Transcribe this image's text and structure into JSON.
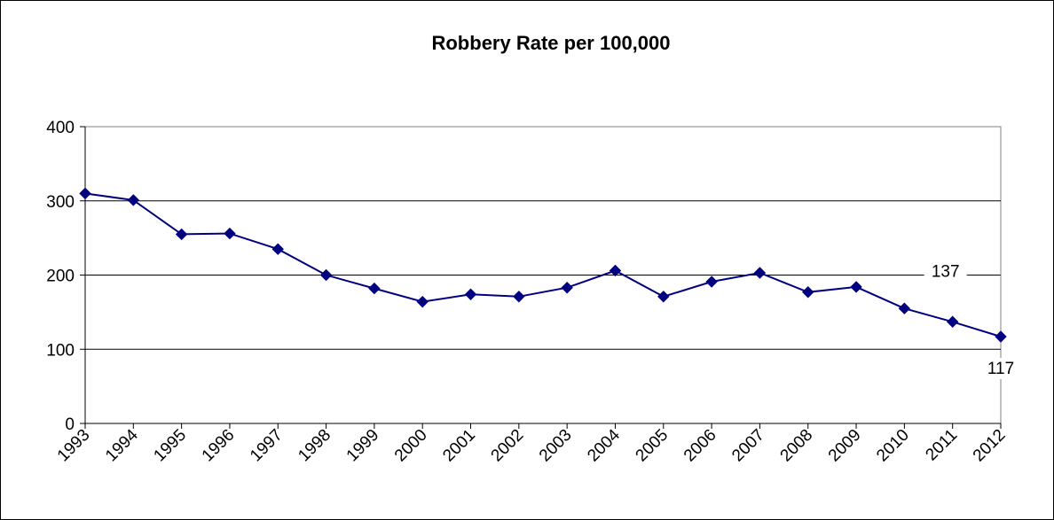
{
  "chart_data": {
    "type": "line",
    "title": "Robbery Rate per 100,000",
    "xlabel": "",
    "ylabel": "",
    "categories": [
      "1993",
      "1994",
      "1995",
      "1996",
      "1997",
      "1998",
      "1999",
      "2000",
      "2001",
      "2002",
      "2003",
      "2004",
      "2005",
      "2006",
      "2007",
      "2008",
      "2009",
      "2010",
      "2011",
      "2012"
    ],
    "series": [
      {
        "values": [
          310,
          301,
          255,
          256,
          235,
          200,
          182,
          164,
          174,
          171,
          183,
          206,
          171,
          191,
          203,
          177,
          184,
          155,
          137,
          117
        ],
        "color": "#000080",
        "marker": "diamond"
      }
    ],
    "data_labels": [
      {
        "category": "2011",
        "text": "137"
      },
      {
        "category": "2012",
        "text": "117"
      }
    ],
    "y_ticks": [
      "0",
      "100",
      "200",
      "300",
      "400"
    ],
    "ylim": [
      0,
      400
    ],
    "grid": true,
    "legend": false
  }
}
